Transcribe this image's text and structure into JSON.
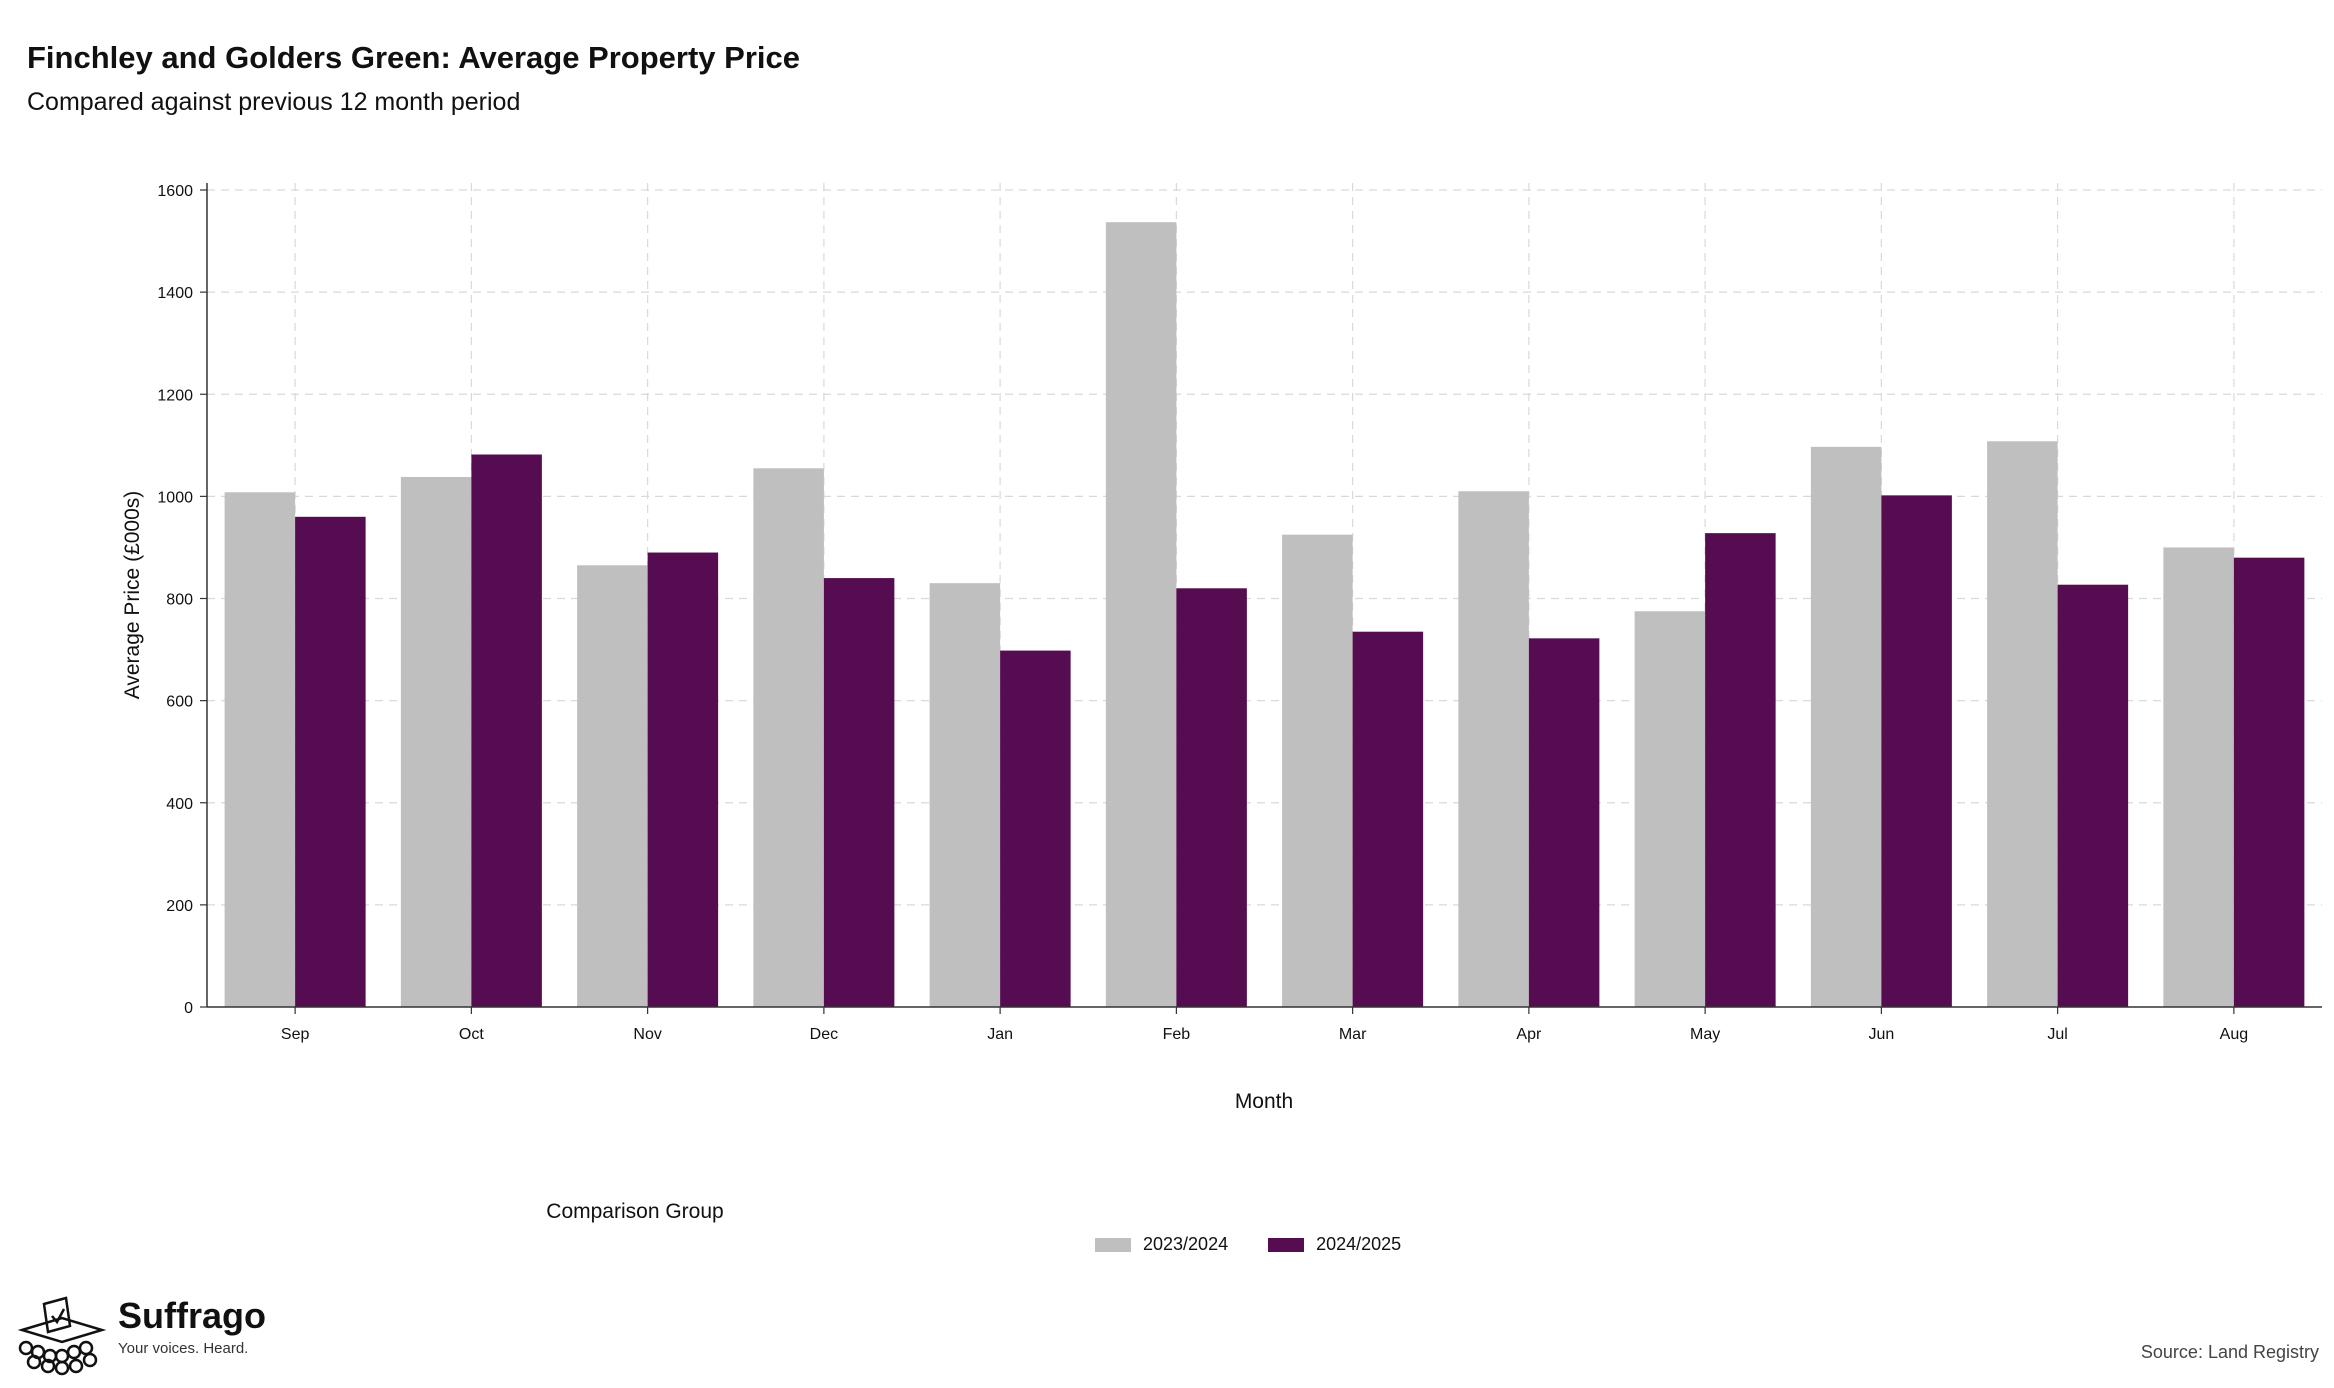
{
  "header": {
    "title": "Finchley and Golders Green: Average Property Price",
    "subtitle": "Compared against previous 12 month period"
  },
  "chart_data": {
    "type": "bar",
    "title": "Finchley and Golders Green: Average Property Price",
    "subtitle": "Compared against previous 12 month period",
    "xlabel": "Month",
    "ylabel": "Average Price (£000s)",
    "ylim": [
      0,
      1600
    ],
    "yticks": [
      0,
      200,
      400,
      600,
      800,
      1000,
      1200,
      1400,
      1600
    ],
    "grid": true,
    "legend_placement": "bottom-center",
    "legend_title": "Comparison Group",
    "categories": [
      "Sep",
      "Oct",
      "Nov",
      "Dec",
      "Jan",
      "Feb",
      "Mar",
      "Apr",
      "May",
      "Jun",
      "Jul",
      "Aug"
    ],
    "series": [
      {
        "name": "2023/2024",
        "color": "#bfbfbf",
        "values": [
          1008,
          1038,
          865,
          1055,
          830,
          1537,
          925,
          1010,
          775,
          1097,
          1108,
          900
        ]
      },
      {
        "name": "2024/2025",
        "color": "#560c51",
        "values": [
          960,
          1082,
          890,
          840,
          698,
          820,
          735,
          722,
          928,
          1002,
          827,
          880
        ]
      }
    ]
  },
  "brand": {
    "name": "Suffrago",
    "tagline": "Your voices. Heard."
  },
  "source": "Source: Land Registry"
}
